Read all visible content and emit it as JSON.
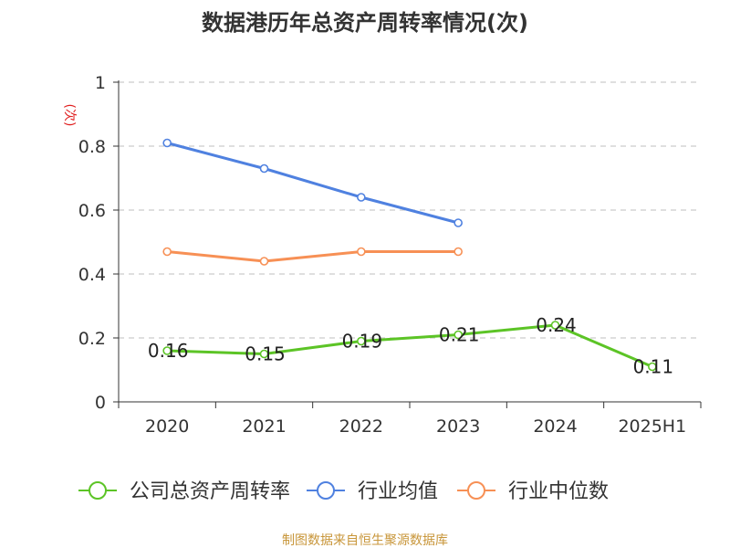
{
  "chart_data": {
    "type": "line",
    "title": "数据港历年总资产周转率情况(次)",
    "ylabel": "(次)",
    "xlabel": "",
    "categories": [
      "2020",
      "2021",
      "2022",
      "2023",
      "2024",
      "2025H1"
    ],
    "ylim": [
      0,
      1
    ],
    "yticks": [
      0,
      0.2,
      0.4,
      0.6,
      0.8,
      1
    ],
    "ytick_labels": [
      "0",
      "0.2",
      "0.4",
      "0.6",
      "0.8",
      "1"
    ],
    "grid": true,
    "legend_position": "bottom",
    "series": [
      {
        "name": "公司总资产周转率",
        "color": "#5cc426",
        "values": [
          0.16,
          0.15,
          0.19,
          0.21,
          0.24,
          0.11
        ],
        "labels": [
          "0.16",
          "0.15",
          "0.19",
          "0.21",
          "0.24",
          "0.11"
        ]
      },
      {
        "name": "行业均值",
        "color": "#4f81e0",
        "values": [
          0.81,
          0.73,
          0.64,
          0.56,
          null,
          null
        ]
      },
      {
        "name": "行业中位数",
        "color": "#f79055",
        "values": [
          0.47,
          0.44,
          0.47,
          0.47,
          null,
          null
        ]
      }
    ],
    "source": "制图数据来自恒生聚源数据库",
    "colors": {
      "title": "#333333",
      "ylabel": "#e02020",
      "source": "#c8963a",
      "axis": "#333333",
      "grid": "#cccccc"
    }
  }
}
